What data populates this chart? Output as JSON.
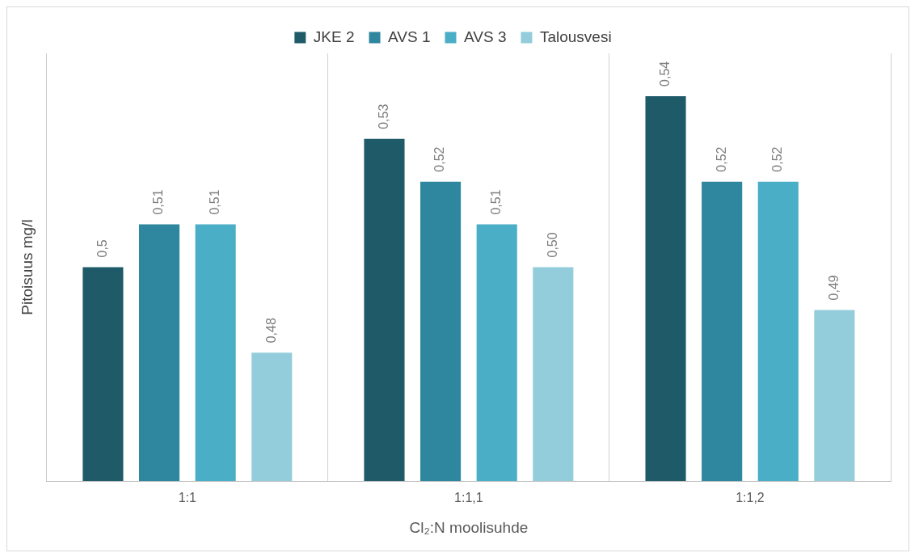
{
  "chart_data": {
    "type": "bar",
    "xlabel": "Cl₂:N moolisuhde",
    "ylabel": "Pitoisuus mg/l",
    "categories": [
      "1:1",
      "1:1,1",
      "1:1,2"
    ],
    "series": [
      {
        "name": "JKE 2",
        "color": "#1f5a68",
        "values": [
          0.5,
          0.53,
          0.54
        ],
        "value_labels": [
          "0,5",
          "0,53",
          "0,54"
        ]
      },
      {
        "name": "AVS 1",
        "color": "#2e879e",
        "values": [
          0.51,
          0.52,
          0.52
        ],
        "value_labels": [
          "0,51",
          "0,52",
          "0,52"
        ]
      },
      {
        "name": "AVS 3",
        "color": "#4aaec6",
        "values": [
          0.51,
          0.51,
          0.52
        ],
        "value_labels": [
          "0,51",
          "0,51",
          "0,52"
        ]
      },
      {
        "name": "Talousvesi",
        "color": "#93cddc",
        "values": [
          0.48,
          0.5,
          0.49
        ],
        "value_labels": [
          "0,48",
          "0,50",
          "0,49"
        ]
      }
    ],
    "ylim": [
      0.45,
      0.55
    ],
    "tick_labels": "x",
    "grid": "x",
    "legend": "top"
  }
}
